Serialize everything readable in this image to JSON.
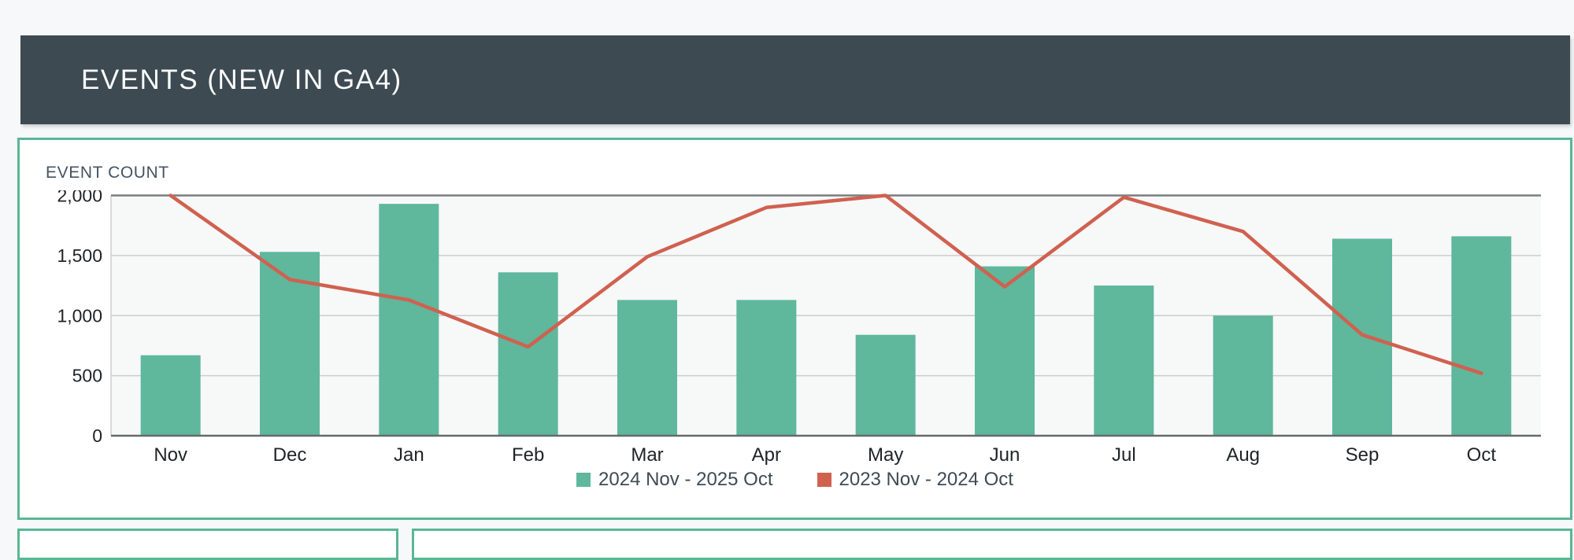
{
  "header": {
    "title": "EVENTS (NEW IN GA4)"
  },
  "chart_data": {
    "type": "bar",
    "subtype": "combo-bar-line",
    "title": "EVENT COUNT",
    "categories": [
      "Nov",
      "Dec",
      "Jan",
      "Feb",
      "Mar",
      "Apr",
      "May",
      "Jun",
      "Jul",
      "Aug",
      "Sep",
      "Oct"
    ],
    "series": [
      {
        "name": "2024 Nov - 2025 Oct",
        "type": "bar",
        "color": "#5fb79c",
        "values": [
          670,
          1530,
          1930,
          1360,
          1130,
          1130,
          840,
          1410,
          1250,
          1000,
          1640,
          1660
        ]
      },
      {
        "name": "2023 Nov - 2024 Oct",
        "type": "line",
        "color": "#d0614f",
        "values": [
          2000,
          1300,
          1130,
          740,
          1490,
          1900,
          2000,
          1240,
          1985,
          1700,
          840,
          520
        ]
      }
    ],
    "xlabel": "",
    "ylabel": "",
    "ylim": [
      0,
      2000
    ],
    "yticks": [
      0,
      500,
      1000,
      1500,
      2000
    ],
    "ytick_labels": [
      "0",
      "500",
      "1,000",
      "1,500",
      "2,000"
    ],
    "grid": "horizontal",
    "legend_position": "bottom"
  },
  "colors": {
    "page_bg": "#f7f8f9",
    "banner_bg": "#3d4a52",
    "banner_text": "#fafbfc",
    "card_border": "#58b794",
    "plot_bg": "#f7f8f8",
    "grid_light": "#cbcdce",
    "axis_top": "#7a7d7f",
    "axis_bottom": "#67696b",
    "tick_text": "#212427",
    "title_text": "#445461",
    "legend_text": "#3e4a54"
  }
}
